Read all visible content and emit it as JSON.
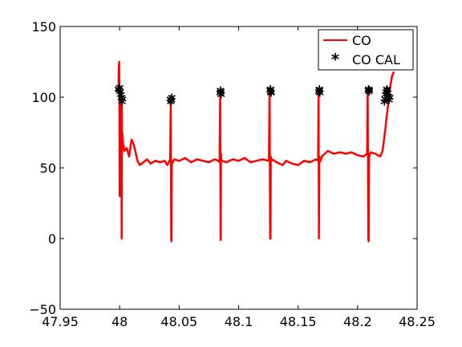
{
  "chart_data": {
    "type": "line",
    "title": "",
    "xlabel": "",
    "ylabel": "",
    "xlim": [
      47.95,
      48.25
    ],
    "ylim": [
      -50,
      150
    ],
    "x_ticks": [
      "47.95",
      "48",
      "48.05",
      "48.1",
      "48.15",
      "48.2",
      "48.25"
    ],
    "x_tick_values": [
      47.95,
      48.0,
      48.05,
      48.1,
      48.15,
      48.2,
      48.25
    ],
    "y_ticks": [
      "150",
      "100",
      "50",
      "0",
      "−50"
    ],
    "y_tick_values": [
      150,
      100,
      50,
      0,
      -50
    ],
    "grid": false,
    "legend_position": "top-right",
    "series": [
      {
        "name": "CO",
        "color": "#ff0000",
        "style": "line",
        "x": [
          47.999,
          47.9993,
          47.9996,
          47.9998,
          48.0,
          48.0005,
          48.001,
          48.0015,
          48.0017,
          48.0018,
          48.002,
          48.0022,
          48.0028,
          48.004,
          48.006,
          48.008,
          48.01,
          48.012,
          48.015,
          48.017,
          48.02,
          48.023,
          48.026,
          48.03,
          48.034,
          48.038,
          48.04,
          48.0425,
          48.043,
          48.0432,
          48.0434,
          48.0436,
          48.0438,
          48.044,
          48.046,
          48.05,
          48.055,
          48.06,
          48.065,
          48.07,
          48.075,
          48.08,
          48.083,
          48.084,
          48.0845,
          48.0848,
          48.085,
          48.0852,
          48.0855,
          48.086,
          48.09,
          48.095,
          48.1,
          48.105,
          48.11,
          48.115,
          48.12,
          48.1255,
          48.126,
          48.1265,
          48.1268,
          48.127,
          48.1272,
          48.1275,
          48.128,
          48.132,
          48.137,
          48.14,
          48.145,
          48.15,
          48.155,
          48.16,
          48.165,
          48.1668,
          48.1672,
          48.1675,
          48.1678,
          48.168,
          48.1683,
          48.1688,
          48.17,
          48.175,
          48.18,
          48.185,
          48.19,
          48.195,
          48.2,
          48.205,
          48.208,
          48.2085,
          48.209,
          48.2093,
          48.2096,
          48.2099,
          48.2102,
          48.211,
          48.215,
          48.219,
          48.221,
          48.223,
          48.225,
          48.227,
          48.229,
          48.2305
        ],
        "y": [
          103,
          120,
          125,
          100,
          30,
          98,
          80,
          50,
          0,
          95,
          60,
          75,
          68,
          62,
          64,
          58,
          70,
          66,
          55,
          52,
          54,
          56,
          53,
          55,
          54,
          55,
          52,
          56,
          98,
          50,
          0,
          -2,
          55,
          53,
          56,
          55,
          57,
          54,
          56,
          55,
          54,
          56,
          55,
          54,
          100,
          0,
          -1,
          60,
          55,
          55,
          54,
          56,
          55,
          57,
          54,
          55,
          56,
          55,
          103,
          0,
          0,
          58,
          55,
          55,
          56,
          54,
          52,
          55,
          53,
          52,
          55,
          54,
          56,
          55,
          103,
          0,
          58,
          54,
          55,
          55,
          58,
          62,
          60,
          61,
          60,
          61,
          59,
          58,
          60,
          104,
          0,
          -2,
          60,
          58,
          60,
          61,
          60,
          58,
          62,
          75,
          90,
          105,
          115,
          118
        ]
      },
      {
        "name": "CO CAL",
        "color": "#000000",
        "style": "markers",
        "marker": "*",
        "x": [
          47.999,
          47.9995,
          48.0,
          48.0005,
          48.001,
          48.0015,
          48.002,
          48.0022,
          48.0425,
          48.043,
          48.0435,
          48.0438,
          48.0845,
          48.0848,
          48.085,
          48.0853,
          48.1265,
          48.1268,
          48.127,
          48.1273,
          48.1675,
          48.1678,
          48.168,
          48.1683,
          48.209,
          48.2093,
          48.2096,
          48.2099,
          48.2225,
          48.223,
          48.2235,
          48.224,
          48.2245,
          48.225,
          48.2255,
          48.226,
          48.2265,
          48.227
        ],
        "y": [
          104,
          103,
          105,
          102,
          100,
          98,
          95,
          97,
          97,
          95,
          96,
          98,
          101,
          103,
          102,
          100,
          103,
          104,
          102,
          101,
          102,
          104,
          103,
          101,
          103,
          104,
          102,
          103,
          95,
          97,
          100,
          102,
          104,
          103,
          101,
          99,
          96,
          98
        ]
      }
    ]
  }
}
